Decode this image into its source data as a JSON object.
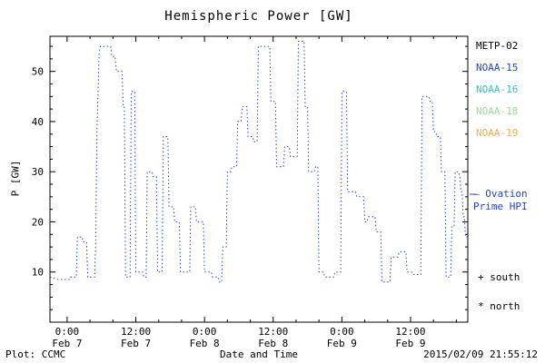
{
  "title": "Hemispheric Power [GW]",
  "ylabel": "P [GW]",
  "xlabel": "Date and Time",
  "footer": {
    "plot_credit": "Plot: CCMC",
    "timestamp": "2015/02/09 21:55:12"
  },
  "legend": {
    "satellites": [
      {
        "label": "METP-02",
        "color": "#000000"
      },
      {
        "label": "NOAA-15",
        "color": "#2244cc"
      },
      {
        "label": "NOAA-16",
        "color": "#22cccc"
      },
      {
        "label": "NOAA-18",
        "color": "#99dd99"
      },
      {
        "label": "NOAA-19",
        "color": "#ffaa44"
      }
    ],
    "ovation": {
      "line1": "— Ovation",
      "line2": "Prime HPI"
    },
    "markers": [
      {
        "symbol": "+",
        "label": "south"
      },
      {
        "symbol": "*",
        "label": "north"
      }
    ]
  },
  "chart_data": {
    "type": "line",
    "step": true,
    "line_style": "dotted",
    "color": "#2244cc",
    "title": "Hemispheric Power [GW]",
    "xlabel": "Date and Time",
    "ylabel": "P [GW]",
    "x_unit": "hours since 2015-02-07 00:00",
    "xlim_hours": [
      -3,
      70
    ],
    "ylim": [
      0,
      57
    ],
    "y_ticks": [
      10,
      20,
      30,
      40,
      50
    ],
    "x_ticks": [
      {
        "hours": 0,
        "label": "0:00",
        "sub": "Feb 7"
      },
      {
        "hours": 12,
        "label": "12:00",
        "sub": "Feb 7"
      },
      {
        "hours": 24,
        "label": "0:00",
        "sub": "Feb 8"
      },
      {
        "hours": 36,
        "label": "12:00",
        "sub": "Feb 8"
      },
      {
        "hours": 48,
        "label": "0:00",
        "sub": "Feb 9"
      },
      {
        "hours": 60,
        "label": "12:00",
        "sub": "Feb 9"
      }
    ],
    "legend_position": "right-outside",
    "grid": false,
    "series": [
      {
        "name": "Ovation Prime HPI",
        "points": [
          [
            -3,
            9
          ],
          [
            -1.6,
            8.5
          ],
          [
            0.4,
            8.5
          ],
          [
            0.6,
            9
          ],
          [
            1.6,
            9
          ],
          [
            1.8,
            17
          ],
          [
            2.6,
            17
          ],
          [
            2.8,
            16
          ],
          [
            3.4,
            16
          ],
          [
            3.6,
            9
          ],
          [
            4.8,
            9
          ],
          [
            5.0,
            16
          ],
          [
            5.2,
            38
          ],
          [
            5.6,
            54
          ],
          [
            5.8,
            55
          ],
          [
            7.6,
            55
          ],
          [
            7.8,
            53
          ],
          [
            8.4,
            53
          ],
          [
            8.6,
            50
          ],
          [
            9.6,
            50
          ],
          [
            9.8,
            43
          ],
          [
            10.0,
            43
          ],
          [
            10.2,
            9
          ],
          [
            11.0,
            9
          ],
          [
            11.2,
            46
          ],
          [
            11.8,
            46
          ],
          [
            12.0,
            10
          ],
          [
            13.2,
            10
          ],
          [
            13.4,
            9
          ],
          [
            13.8,
            9
          ],
          [
            14.0,
            30
          ],
          [
            14.8,
            30
          ],
          [
            15.0,
            29
          ],
          [
            15.6,
            29
          ],
          [
            15.8,
            10
          ],
          [
            16.6,
            10
          ],
          [
            16.8,
            37
          ],
          [
            17.6,
            37
          ],
          [
            17.8,
            23
          ],
          [
            18.6,
            23
          ],
          [
            18.8,
            20
          ],
          [
            19.6,
            20
          ],
          [
            19.8,
            10
          ],
          [
            21.4,
            10
          ],
          [
            21.6,
            23
          ],
          [
            22.4,
            23
          ],
          [
            22.6,
            20
          ],
          [
            23.8,
            20
          ],
          [
            24.0,
            10
          ],
          [
            25.2,
            10
          ],
          [
            25.4,
            9
          ],
          [
            26.4,
            9
          ],
          [
            26.6,
            8
          ],
          [
            27.0,
            8
          ],
          [
            27.2,
            15
          ],
          [
            27.8,
            15
          ],
          [
            28.0,
            30
          ],
          [
            28.6,
            30
          ],
          [
            28.8,
            31
          ],
          [
            29.6,
            31
          ],
          [
            29.8,
            40
          ],
          [
            30.4,
            40
          ],
          [
            30.6,
            43
          ],
          [
            31.4,
            43
          ],
          [
            31.6,
            37
          ],
          [
            32.4,
            37
          ],
          [
            32.6,
            36
          ],
          [
            33.2,
            36
          ],
          [
            33.4,
            55
          ],
          [
            35.4,
            55
          ],
          [
            35.6,
            44
          ],
          [
            36.4,
            44
          ],
          [
            36.6,
            31
          ],
          [
            37.8,
            31
          ],
          [
            38.0,
            35
          ],
          [
            38.8,
            35
          ],
          [
            39.0,
            33
          ],
          [
            40.2,
            33
          ],
          [
            40.4,
            56
          ],
          [
            41.4,
            56
          ],
          [
            41.6,
            43
          ],
          [
            42.0,
            43
          ],
          [
            42.2,
            30
          ],
          [
            43.2,
            30
          ],
          [
            43.4,
            31
          ],
          [
            43.8,
            31
          ],
          [
            44.0,
            10
          ],
          [
            44.8,
            10
          ],
          [
            45.0,
            9
          ],
          [
            46.6,
            9
          ],
          [
            46.8,
            10
          ],
          [
            47.8,
            10
          ],
          [
            48.0,
            46
          ],
          [
            48.8,
            46
          ],
          [
            49.0,
            26
          ],
          [
            50.4,
            26
          ],
          [
            50.6,
            25
          ],
          [
            51.8,
            25
          ],
          [
            52.0,
            20
          ],
          [
            52.4,
            20
          ],
          [
            52.6,
            21
          ],
          [
            53.8,
            21
          ],
          [
            54.0,
            18
          ],
          [
            54.8,
            18
          ],
          [
            55.0,
            8
          ],
          [
            56.4,
            8
          ],
          [
            56.6,
            13
          ],
          [
            57.8,
            13
          ],
          [
            58.0,
            14
          ],
          [
            59.2,
            14
          ],
          [
            59.4,
            10
          ],
          [
            60.2,
            10
          ],
          [
            60.4,
            9.5
          ],
          [
            61.8,
            9.5
          ],
          [
            62.0,
            45
          ],
          [
            63.2,
            45
          ],
          [
            63.4,
            44
          ],
          [
            63.8,
            44
          ],
          [
            64.0,
            38
          ],
          [
            64.4,
            38
          ],
          [
            64.6,
            37
          ],
          [
            65.2,
            37
          ],
          [
            65.4,
            30
          ],
          [
            66.0,
            30
          ],
          [
            66.2,
            9
          ],
          [
            67.0,
            9
          ],
          [
            67.2,
            19
          ],
          [
            67.6,
            19
          ],
          [
            67.8,
            30
          ],
          [
            68.4,
            30
          ],
          [
            68.6,
            29
          ],
          [
            68.8,
            26
          ],
          [
            69.0,
            26
          ],
          [
            69.2,
            21
          ],
          [
            69.4,
            21
          ],
          [
            69.6,
            17
          ],
          [
            70,
            17
          ]
        ]
      }
    ]
  }
}
